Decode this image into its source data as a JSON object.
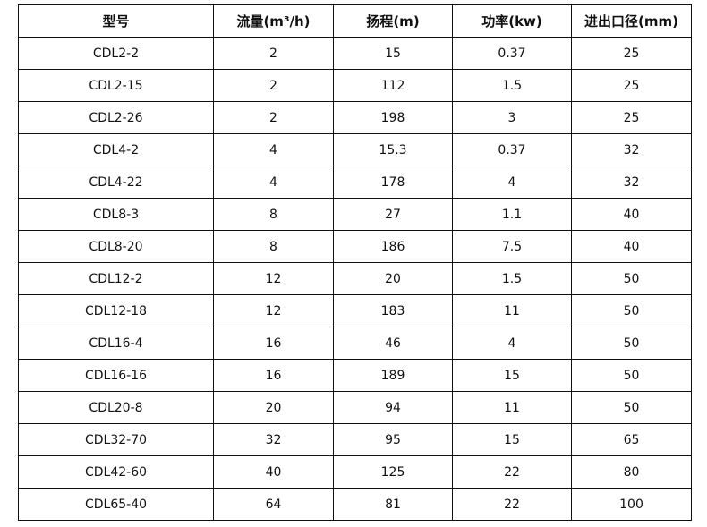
{
  "table": {
    "headers": [
      "型号",
      "流量(m³/h)",
      "扬程(m)",
      "功率(kw)",
      "进出口径(mm)"
    ],
    "rows": [
      [
        "CDL2-2",
        "2",
        "15",
        "0.37",
        "25"
      ],
      [
        "CDL2-15",
        "2",
        "112",
        "1.5",
        "25"
      ],
      [
        "CDL2-26",
        "2",
        "198",
        "3",
        "25"
      ],
      [
        "CDL4-2",
        "4",
        "15.3",
        "0.37",
        "32"
      ],
      [
        "CDL4-22",
        "4",
        "178",
        "4",
        "32"
      ],
      [
        "CDL8-3",
        "8",
        "27",
        "1.1",
        "40"
      ],
      [
        "CDL8-20",
        "8",
        "186",
        "7.5",
        "40"
      ],
      [
        "CDL12-2",
        "12",
        "20",
        "1.5",
        "50"
      ],
      [
        "CDL12-18",
        "12",
        "183",
        "11",
        "50"
      ],
      [
        "CDL16-4",
        "16",
        "46",
        "4",
        "50"
      ],
      [
        "CDL16-16",
        "16",
        "189",
        "15",
        "50"
      ],
      [
        "CDL20-8",
        "20",
        "94",
        "11",
        "50"
      ],
      [
        "CDL32-70",
        "32",
        "95",
        "15",
        "65"
      ],
      [
        "CDL42-60",
        "40",
        "125",
        "22",
        "80"
      ],
      [
        "CDL65-40",
        "64",
        "81",
        "22",
        "100"
      ]
    ]
  }
}
